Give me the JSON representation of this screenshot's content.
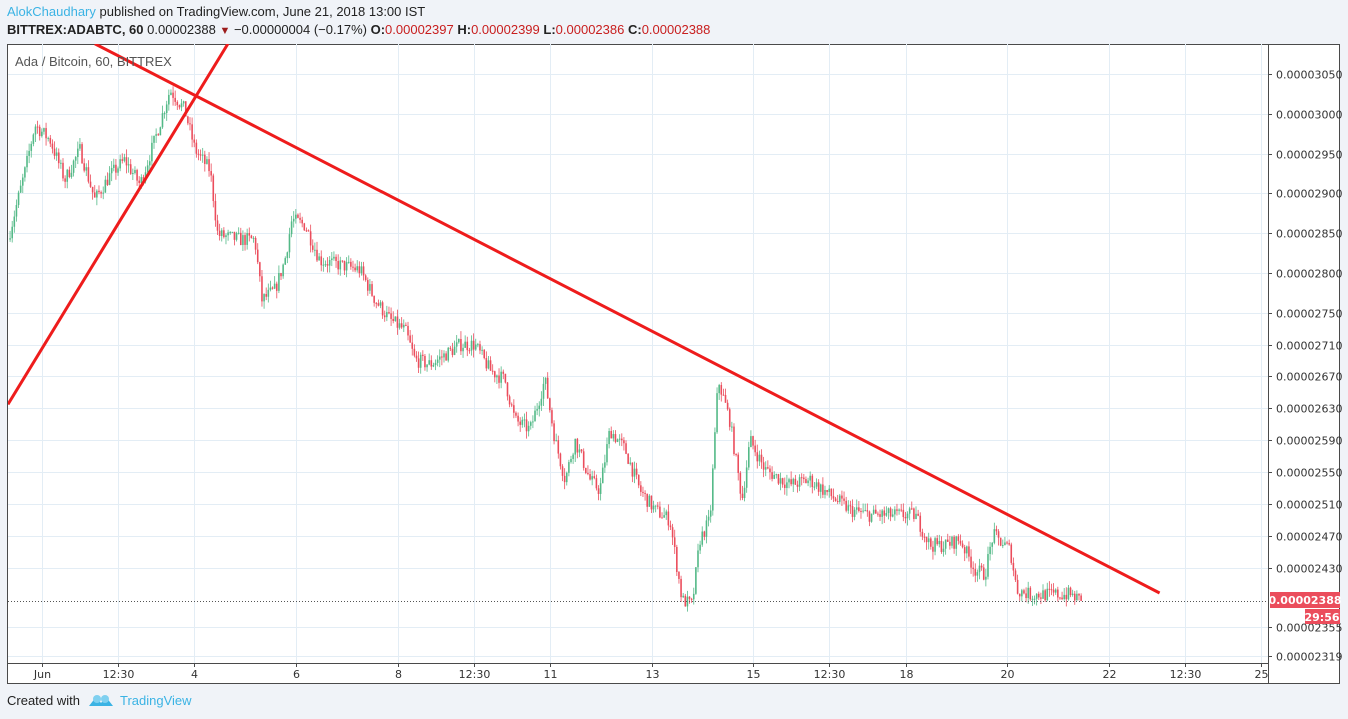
{
  "header": {
    "author": "AlokChaudhary",
    "published": "published on TradingView.com, June 21, 2018 13:00 IST",
    "symbol": "BITTREX:ADABTC, 60",
    "last": "0.00002388",
    "change": "−0.00000004 (−0.17%)",
    "o_label": "O:",
    "o": "0.00002397",
    "h_label": "H:",
    "h": "0.00002399",
    "l_label": "L:",
    "l": "0.00002386",
    "c_label": "C:",
    "c": "0.00002388"
  },
  "legend": "Ada / Bitcoin, 60, BITTREX",
  "price_tag": "0.00002388",
  "countdown": "29:56",
  "footer": {
    "created": "Created with",
    "brand": "TradingView"
  },
  "colors": {
    "up": "#53b987",
    "down": "#eb4d5c",
    "trend": "#ee1c1c",
    "grid": "#e3edf5"
  },
  "chart_data": {
    "type": "candlestick",
    "title": "Ada / Bitcoin, 60, BITTREX",
    "price_unit": "1e-8 BTC",
    "ylim": [
      2290,
      3088
    ],
    "y_ticks": [
      {
        "v": 3050,
        "label": "0.00003050"
      },
      {
        "v": 3000,
        "label": "0.00003000"
      },
      {
        "v": 2950,
        "label": "0.00002950"
      },
      {
        "v": 2900,
        "label": "0.00002900"
      },
      {
        "v": 2850,
        "label": "0.00002850"
      },
      {
        "v": 2800,
        "label": "0.00002800"
      },
      {
        "v": 2750,
        "label": "0.00002750"
      },
      {
        "v": 2710,
        "label": "0.00002710"
      },
      {
        "v": 2670,
        "label": "0.00002670"
      },
      {
        "v": 2630,
        "label": "0.00002630"
      },
      {
        "v": 2590,
        "label": "0.00002590"
      },
      {
        "v": 2550,
        "label": "0.00002550"
      },
      {
        "v": 2510,
        "label": "0.00002510"
      },
      {
        "v": 2470,
        "label": "0.00002470"
      },
      {
        "v": 2430,
        "label": "0.00002430"
      },
      {
        "v": 2355,
        "label": "0.00002355"
      },
      {
        "v": 2319,
        "label": "0.00002319"
      }
    ],
    "xlim_days": [
      0.33,
      25.1
    ],
    "x_ticks": [
      {
        "d": 1,
        "label": "Jun"
      },
      {
        "d": 2.5,
        "label": "12:30"
      },
      {
        "d": 4,
        "label": "4"
      },
      {
        "d": 6,
        "label": "6"
      },
      {
        "d": 8,
        "label": "8"
      },
      {
        "d": 9.5,
        "label": "12:30"
      },
      {
        "d": 11,
        "label": "11"
      },
      {
        "d": 13,
        "label": "13"
      },
      {
        "d": 15,
        "label": "15"
      },
      {
        "d": 16.5,
        "label": "12:30"
      },
      {
        "d": 18,
        "label": "18"
      },
      {
        "d": 20,
        "label": "20"
      },
      {
        "d": 22,
        "label": "22"
      },
      {
        "d": 23.5,
        "label": "12:30"
      },
      {
        "d": 25,
        "label": "25"
      }
    ],
    "last_price": 2388,
    "price_path": [
      [
        0.33,
        2842
      ],
      [
        0.67,
        2929
      ],
      [
        0.86,
        2986
      ],
      [
        1.16,
        2967
      ],
      [
        1.45,
        2917
      ],
      [
        1.75,
        2955
      ],
      [
        2.04,
        2892
      ],
      [
        2.34,
        2923
      ],
      [
        2.63,
        2942
      ],
      [
        2.93,
        2911
      ],
      [
        3.22,
        2967
      ],
      [
        3.52,
        3030
      ],
      [
        3.81,
        3005
      ],
      [
        4.01,
        2955
      ],
      [
        4.31,
        2929
      ],
      [
        4.46,
        2848
      ],
      [
        4.9,
        2842
      ],
      [
        5.19,
        2842
      ],
      [
        5.33,
        2766
      ],
      [
        5.59,
        2779
      ],
      [
        5.78,
        2816
      ],
      [
        5.92,
        2867
      ],
      [
        6.18,
        2860
      ],
      [
        6.47,
        2816
      ],
      [
        6.87,
        2810
      ],
      [
        7.26,
        2804
      ],
      [
        7.56,
        2766
      ],
      [
        7.85,
        2741
      ],
      [
        8.15,
        2728
      ],
      [
        8.34,
        2691
      ],
      [
        8.64,
        2685
      ],
      [
        8.93,
        2697
      ],
      [
        9.23,
        2710
      ],
      [
        9.52,
        2710
      ],
      [
        9.82,
        2678
      ],
      [
        10.11,
        2666
      ],
      [
        10.31,
        2615
      ],
      [
        10.61,
        2603
      ],
      [
        10.9,
        2666
      ],
      [
        11.1,
        2590
      ],
      [
        11.3,
        2540
      ],
      [
        11.49,
        2590
      ],
      [
        11.79,
        2540
      ],
      [
        11.98,
        2527
      ],
      [
        12.18,
        2603
      ],
      [
        12.48,
        2578
      ],
      [
        12.77,
        2527
      ],
      [
        13.07,
        2502
      ],
      [
        13.36,
        2490
      ],
      [
        13.6,
        2389
      ],
      [
        13.8,
        2383
      ],
      [
        13.95,
        2465
      ],
      [
        14.15,
        2490
      ],
      [
        14.31,
        2666
      ],
      [
        14.54,
        2615
      ],
      [
        14.78,
        2515
      ],
      [
        14.94,
        2590
      ],
      [
        15.23,
        2553
      ],
      [
        15.72,
        2534
      ],
      [
        16.12,
        2540
      ],
      [
        16.51,
        2521
      ],
      [
        16.91,
        2502
      ],
      [
        17.3,
        2496
      ],
      [
        17.69,
        2496
      ],
      [
        18.19,
        2496
      ],
      [
        18.48,
        2458
      ],
      [
        18.78,
        2458
      ],
      [
        19.07,
        2465
      ],
      [
        19.37,
        2427
      ],
      [
        19.56,
        2421
      ],
      [
        19.72,
        2471
      ],
      [
        20.06,
        2452
      ],
      [
        20.19,
        2402
      ],
      [
        20.45,
        2396
      ],
      [
        20.84,
        2396
      ],
      [
        21.24,
        2396
      ],
      [
        21.47,
        2388
      ]
    ],
    "trendlines": [
      {
        "from": [
          0.33,
          2635
        ],
        "to": [
          4.66,
          3088
        ]
      },
      {
        "from": [
          2.04,
          3088
        ],
        "to": [
          23.0,
          2398
        ]
      }
    ]
  }
}
